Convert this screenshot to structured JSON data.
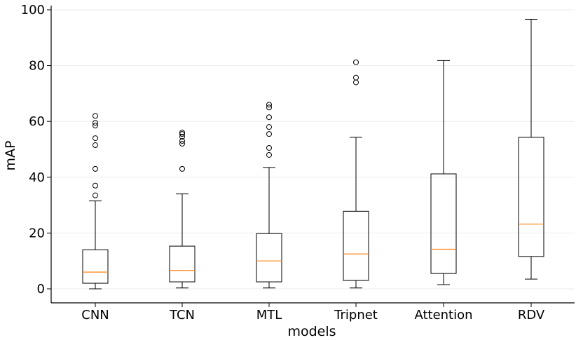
{
  "chart_data": {
    "type": "boxplot",
    "title": "",
    "xlabel": "models",
    "ylabel": "mAP",
    "ylim": [
      -5,
      101
    ],
    "yticks": [
      0,
      20,
      40,
      60,
      80,
      100
    ],
    "grid": "horizontal",
    "categories": [
      "CNN",
      "TCN",
      "MTL",
      "Tripnet",
      "Attention",
      "RDV"
    ],
    "boxes": [
      {
        "name": "CNN",
        "whisker_low": 0,
        "q1": 2,
        "median": 6,
        "q3": 14,
        "whisker_high": 31.5,
        "outliers": [
          33.5,
          37,
          43,
          51.5,
          54,
          58.5,
          59.5,
          62
        ]
      },
      {
        "name": "TCN",
        "whisker_low": 0.3,
        "q1": 2.5,
        "median": 6.6,
        "q3": 15.3,
        "whisker_high": 34,
        "outliers": [
          43,
          52,
          53,
          54.5,
          55.5,
          56
        ]
      },
      {
        "name": "MTL",
        "whisker_low": 0.3,
        "q1": 2.5,
        "median": 10,
        "q3": 19.8,
        "whisker_high": 43.5,
        "outliers": [
          48,
          50.5,
          55.5,
          58,
          61.5,
          65,
          66
        ]
      },
      {
        "name": "Tripnet",
        "whisker_low": 0.3,
        "q1": 3,
        "median": 12.5,
        "q3": 27.8,
        "whisker_high": 54.3,
        "outliers": [
          74,
          75.7,
          81.2
        ]
      },
      {
        "name": "Attention",
        "whisker_low": 1.5,
        "q1": 5.5,
        "median": 14.2,
        "q3": 41.2,
        "whisker_high": 81.8,
        "outliers": []
      },
      {
        "name": "RDV",
        "whisker_low": 3.5,
        "q1": 11.6,
        "median": 23.2,
        "q3": 54.3,
        "whisker_high": 96.6,
        "outliers": []
      }
    ]
  },
  "colors": {
    "box_edge": "#000000",
    "median": "#ff7f0e",
    "grid": "#ebebeb",
    "background": "#ffffff"
  }
}
